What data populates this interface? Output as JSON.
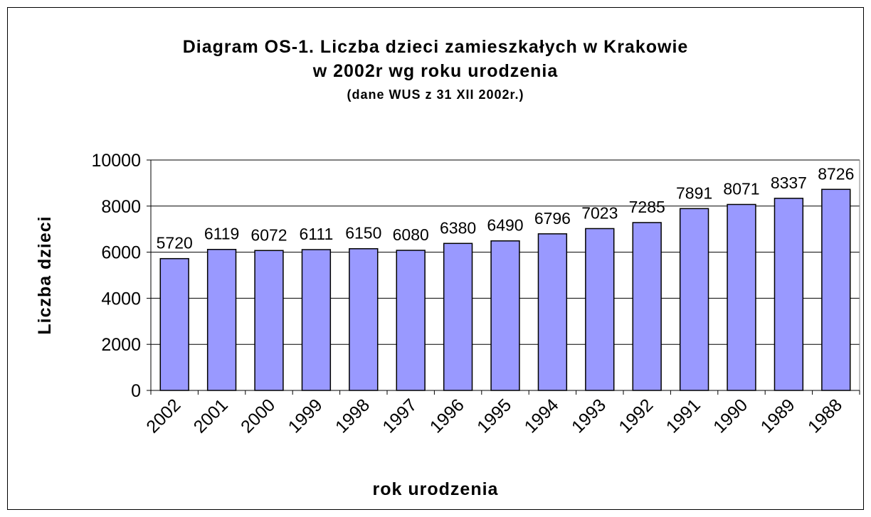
{
  "chart_data": {
    "type": "bar",
    "title": [
      "Diagram OS-1. Liczba dzieci zamieszkałych w Krakowie",
      "w 2002r wg roku urodzenia"
    ],
    "subtitle": "(dane WUS z 31 XII 2002r.)",
    "x_label": "rok urodzenia",
    "y_label": "Liczba dzieci",
    "categories": [
      "2002",
      "2001",
      "2000",
      "1999",
      "1998",
      "1997",
      "1996",
      "1995",
      "1994",
      "1993",
      "1992",
      "1991",
      "1990",
      "1989",
      "1988"
    ],
    "values": [
      5720,
      6119,
      6072,
      6111,
      6150,
      6080,
      6380,
      6490,
      6796,
      7023,
      7285,
      7891,
      8071,
      8337,
      8726
    ],
    "color": "#9999ff",
    "ylim": [
      0,
      10000
    ],
    "yticks": [
      0,
      2000,
      4000,
      6000,
      8000,
      10000
    ],
    "grid": true
  }
}
